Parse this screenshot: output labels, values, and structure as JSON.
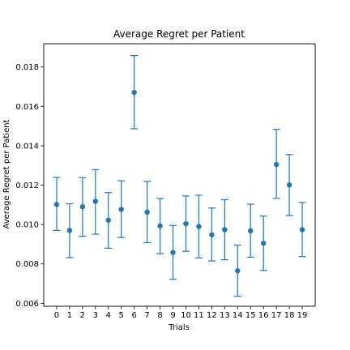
{
  "chart_data": {
    "type": "scatter",
    "title": "Average Regret per Patient",
    "xlabel": "Trials",
    "ylabel": "Average Regret per Patient",
    "x": [
      0,
      1,
      2,
      3,
      4,
      5,
      6,
      7,
      8,
      9,
      10,
      11,
      12,
      13,
      14,
      15,
      16,
      17,
      18,
      19
    ],
    "x_tick_labels": [
      "0",
      "1",
      "2",
      "3",
      "4",
      "5",
      "6",
      "7",
      "8",
      "9",
      "10",
      "11",
      "12",
      "13",
      "14",
      "15",
      "16",
      "17",
      "18",
      "19"
    ],
    "y": [
      0.01102,
      0.0097,
      0.0109,
      0.01118,
      0.01022,
      0.01077,
      0.01671,
      0.01063,
      0.00993,
      0.00858,
      0.01004,
      0.0099,
      0.00948,
      0.00974,
      0.00765,
      0.00968,
      0.00905,
      0.01305,
      0.01201,
      0.00974
    ],
    "yerr_low": [
      0.0097,
      0.00832,
      0.0094,
      0.00951,
      0.0088,
      0.00934,
      0.01486,
      0.00908,
      0.00852,
      0.00722,
      0.00864,
      0.0083,
      0.00815,
      0.00821,
      0.00636,
      0.00834,
      0.00767,
      0.01133,
      0.01046,
      0.00837
    ],
    "yerr_high": [
      0.01239,
      0.01105,
      0.01238,
      0.01279,
      0.01162,
      0.01222,
      0.01858,
      0.01219,
      0.01132,
      0.00995,
      0.01145,
      0.01149,
      0.01084,
      0.01126,
      0.00895,
      0.01103,
      0.01043,
      0.01483,
      0.01355,
      0.01112
    ],
    "xlim": [
      -1,
      20
    ],
    "ylim": [
      0.00585,
      0.01918
    ],
    "y_ticks": [
      0.006,
      0.008,
      0.01,
      0.012,
      0.014,
      0.016,
      0.018
    ],
    "y_tick_labels": [
      "0.006",
      "0.008",
      "0.010",
      "0.012",
      "0.014",
      "0.016",
      "0.018"
    ],
    "grid": false,
    "color": "#1f77b4"
  }
}
